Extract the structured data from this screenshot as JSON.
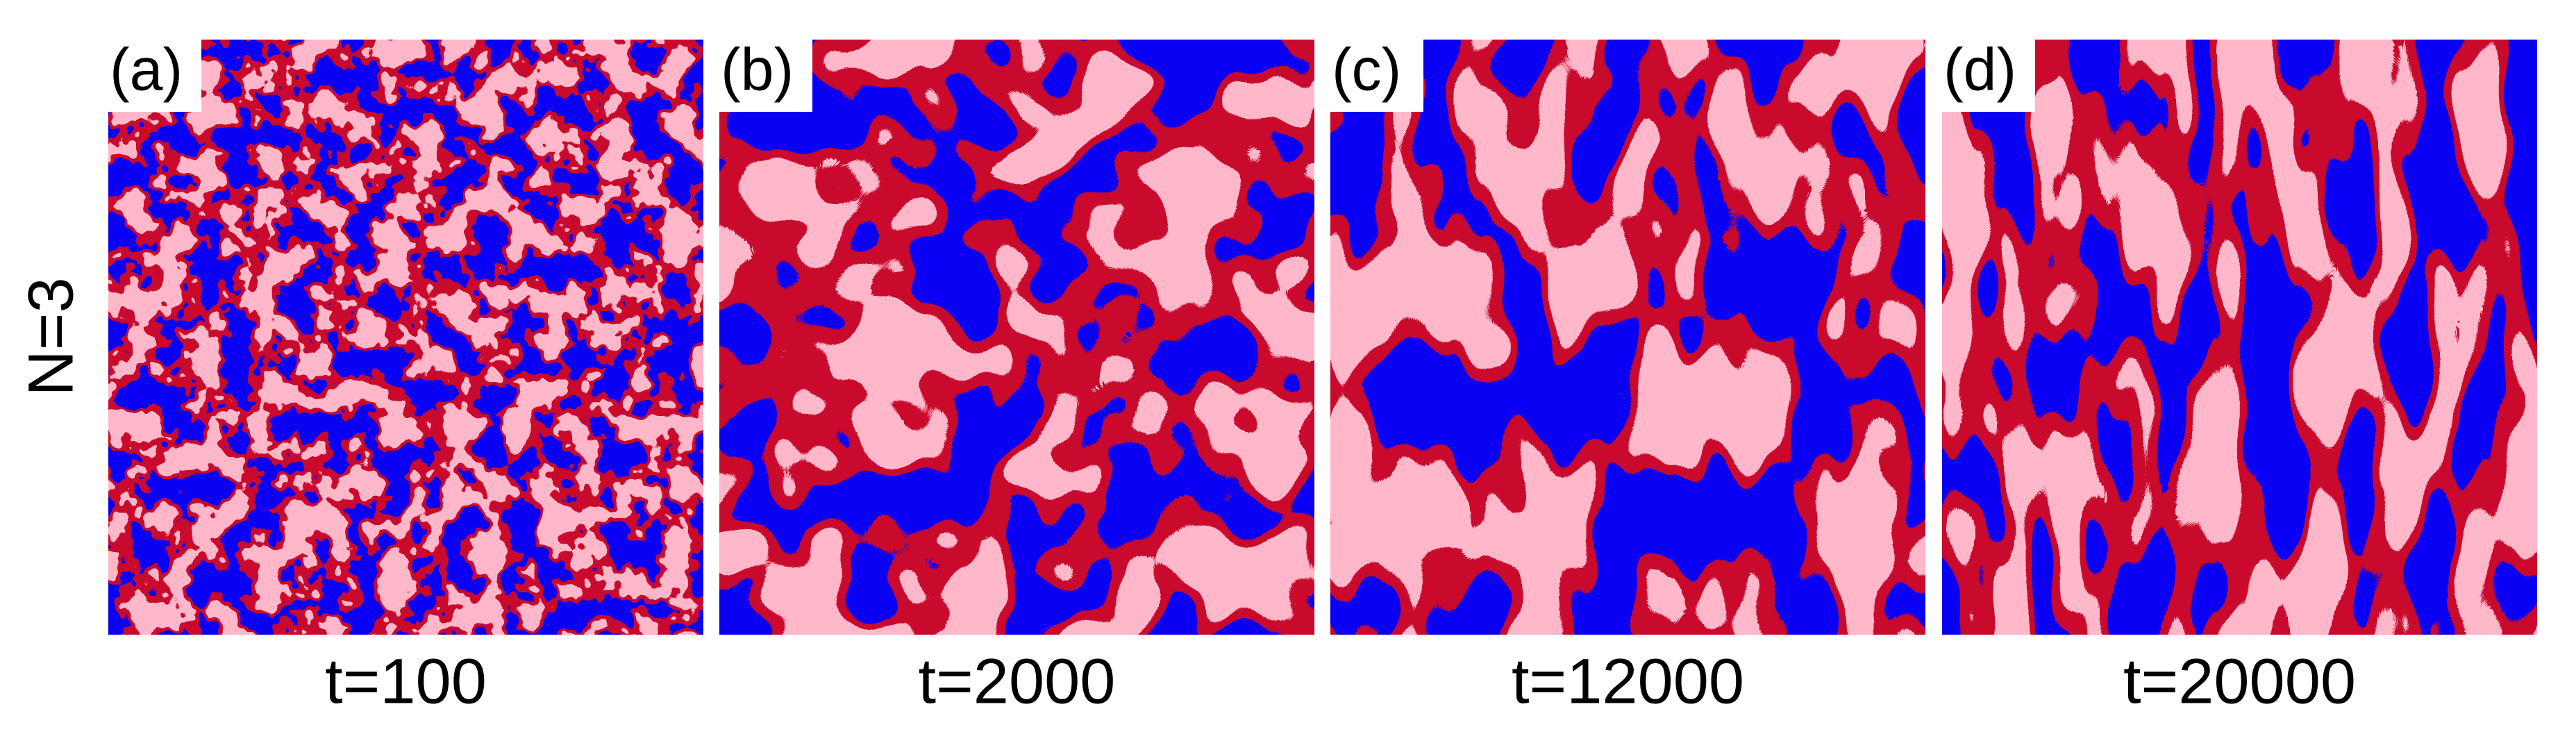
{
  "y_label": "N=3",
  "panels": [
    {
      "label": "(a)",
      "caption": "t=100"
    },
    {
      "label": "(b)",
      "caption": "t=2000"
    },
    {
      "label": "(c)",
      "caption": "t=12000"
    },
    {
      "label": "(d)",
      "caption": "t=20000"
    }
  ]
}
